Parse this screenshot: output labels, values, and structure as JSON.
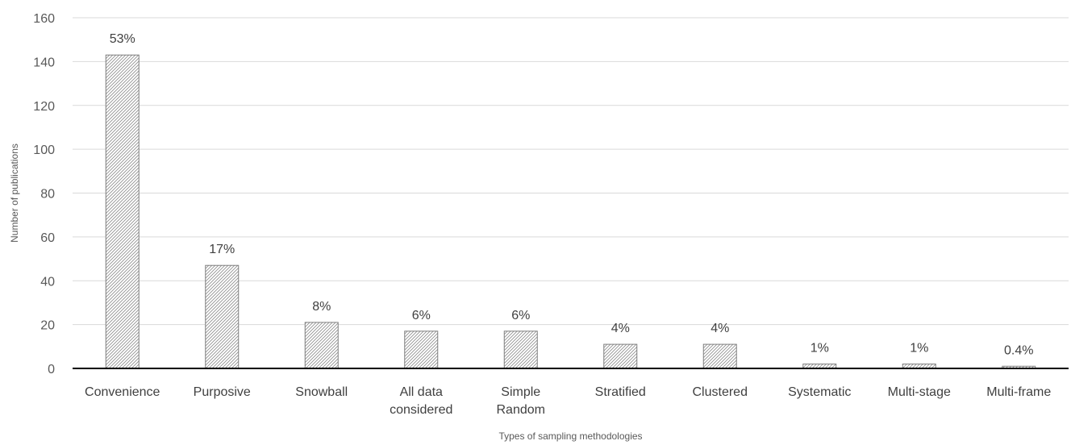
{
  "chart_data": {
    "type": "bar",
    "categories": [
      "Convenience",
      "Purposive",
      "Snowball",
      "All data considered",
      "Simple Random",
      "Stratified",
      "Clustered",
      "Systematic",
      "Multi-stage",
      "Multi-frame"
    ],
    "category_lines": [
      [
        "Convenience"
      ],
      [
        "Purposive"
      ],
      [
        "Snowball"
      ],
      [
        "All data",
        "considered"
      ],
      [
        "Simple",
        "Random"
      ],
      [
        "Stratified"
      ],
      [
        "Clustered"
      ],
      [
        "Systematic"
      ],
      [
        "Multi-stage"
      ],
      [
        "Multi-frame"
      ]
    ],
    "values": [
      143,
      47,
      21,
      17,
      17,
      11,
      11,
      2,
      2,
      1
    ],
    "data_labels": [
      "53%",
      "17%",
      "8%",
      "6%",
      "6%",
      "4%",
      "4%",
      "1%",
      "1%",
      "0.4%"
    ],
    "xlabel": "Types of sampling methodologies",
    "ylabel": "Number of publications",
    "ylim": [
      0,
      160
    ],
    "yticks": [
      0,
      20,
      40,
      60,
      80,
      100,
      120,
      140,
      160
    ],
    "grid": true,
    "bar_pattern": "diagonal-hatch",
    "colors": {
      "bar_stroke": "#7f7f7f",
      "hatch": "#8c8c8c",
      "grid": "#d9d9d9",
      "axis": "#000000"
    }
  }
}
